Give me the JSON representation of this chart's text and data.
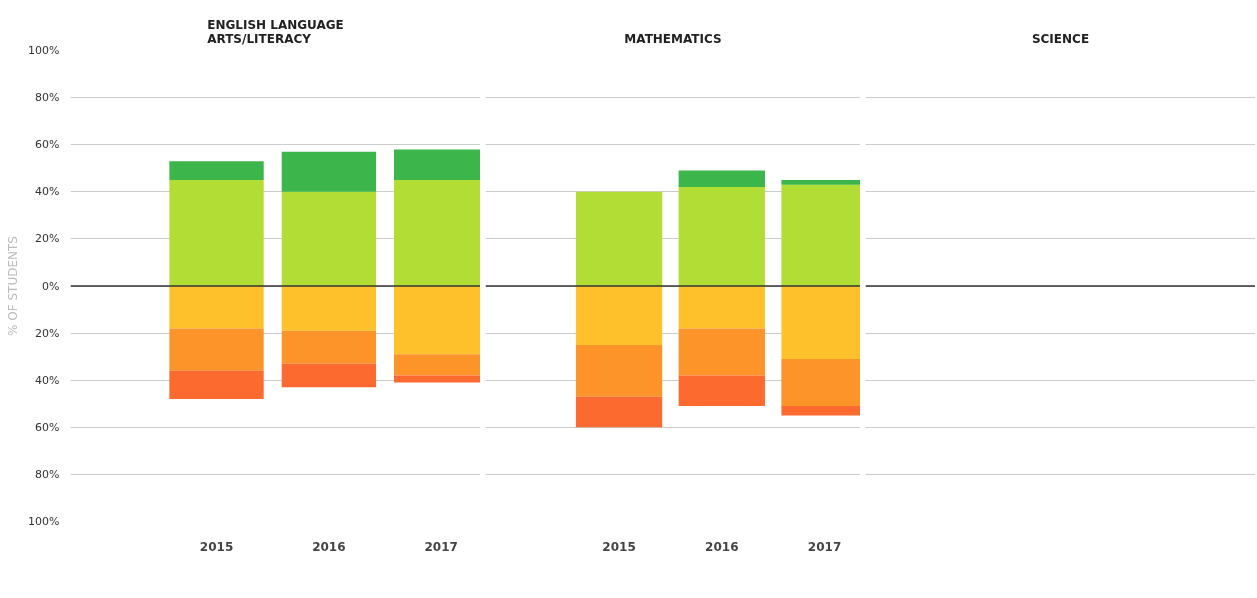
{
  "chart_data": [
    {
      "type": "bar",
      "title": "ENGLISH LANGUAGE ARTS/LITERACY",
      "ylabel": "% OF STUDENTS",
      "stacked": true,
      "categories": [
        "2015",
        "2016",
        "2017"
      ],
      "series": [
        {
          "color": "#b2dd35",
          "values": [
            45,
            40,
            45
          ]
        },
        {
          "color": "#3cb54a",
          "values": [
            8,
            17,
            13
          ]
        },
        {
          "color": "#ffc12b",
          "values": [
            -18,
            -19,
            -29
          ]
        },
        {
          "color": "#fd942a",
          "values": [
            -18,
            -14,
            -9
          ]
        },
        {
          "color": "#fc6a30",
          "values": [
            -12,
            -10,
            -3
          ]
        }
      ],
      "ylim": [
        -100,
        100
      ],
      "yticks": [
        {
          "value": -100,
          "label": "100%"
        },
        {
          "value": -80,
          "label": "80%"
        },
        {
          "value": -60,
          "label": "60%"
        },
        {
          "value": -40,
          "label": "40%"
        },
        {
          "value": -20,
          "label": "20%"
        },
        {
          "value": 0,
          "label": "0%"
        },
        {
          "value": 20,
          "label": "20%"
        },
        {
          "value": 40,
          "label": "40%"
        },
        {
          "value": 60,
          "label": "60%"
        },
        {
          "value": 80,
          "label": "80%"
        },
        {
          "value": 100,
          "label": "100%"
        }
      ],
      "grid": "y",
      "ref_lines": [
        {
          "axis": "y",
          "value": 0,
          "color": "#333333"
        }
      ]
    },
    {
      "type": "bar",
      "title": "MATHEMATICS",
      "stacked": true,
      "categories": [
        "2015",
        "2016",
        "2017"
      ],
      "series": [
        {
          "color": "#b2dd35",
          "values": [
            40,
            42,
            43
          ]
        },
        {
          "color": "#3cb54a",
          "values": [
            0,
            7,
            2
          ]
        },
        {
          "color": "#ffc12b",
          "values": [
            -25,
            -18,
            -31
          ]
        },
        {
          "color": "#fd942a",
          "values": [
            -22,
            -20,
            -20
          ]
        },
        {
          "color": "#fc6a30",
          "values": [
            -13,
            -13,
            -4
          ]
        }
      ],
      "ylim": [
        -100,
        100
      ],
      "tick_labels": "x",
      "grid": "y",
      "ref_lines": [
        {
          "axis": "y",
          "value": 0,
          "color": "#333333"
        }
      ]
    },
    {
      "type": "other",
      "title": "SCIENCE"
    }
  ]
}
